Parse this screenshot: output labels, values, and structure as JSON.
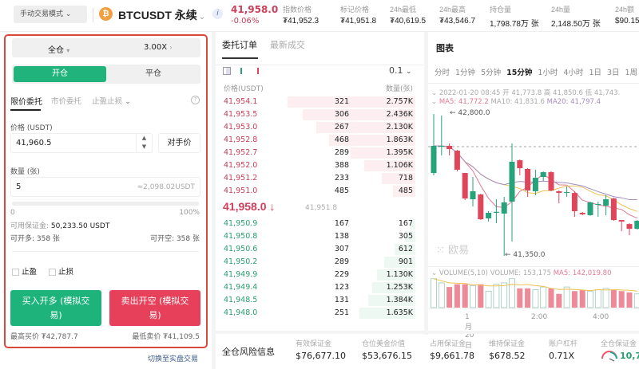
{
  "header": {
    "mode": "手动交易模式",
    "coin_letter": "₿",
    "symbol": "BTCUSDT 永续",
    "last_price": "41,958.0",
    "change": "-0.06%",
    "stats": [
      {
        "label": "指数价格",
        "value": "₮41,952.3"
      },
      {
        "label": "标记价格",
        "value": "₮41,951.8"
      },
      {
        "label": "24h最低",
        "value": "₮40,619.5"
      },
      {
        "label": "24h最高",
        "value": "₮43,546.7"
      },
      {
        "label": "持仓量",
        "value": "1,798.78万 张"
      },
      {
        "label": "24h量",
        "value": "2,148.50万 张"
      },
      {
        "label": "24h额",
        "value": "$90.15"
      }
    ]
  },
  "order_form": {
    "margin_mode": "全仓",
    "leverage": "3.00X",
    "open_tab": "开仓",
    "close_tab": "平仓",
    "tabs": [
      "限价委托",
      "市价委托",
      "止盈止损"
    ],
    "price_label": "价格 (USDT)",
    "price_value": "41,960.5",
    "counter_price": "对手价",
    "qty_label": "数量 (张)",
    "qty_value": "5",
    "qty_usdt": "≈2,098.02USDT",
    "slider_min": "0",
    "slider_max": "100%",
    "slider_value": 0,
    "avail_margin_label": "可用保证金:",
    "avail_margin": "50,233.50 USDT",
    "can_long": "可开多: 358 张",
    "can_short": "可开空: 358 张",
    "take_profit": "止盈",
    "stop_loss": "止损",
    "buy_button": "买入开多 (模拟交易)",
    "sell_button": "卖出开空 (模拟交易)",
    "max_buy": "最高买价 ₮42,787.7",
    "min_sell": "最低卖价 ₮41,109.5",
    "switch_live": "切换至实盘交易"
  },
  "orderbook": {
    "tabs": [
      "委托订单",
      "最新成交"
    ],
    "precision": "0.1",
    "col_price": "价格(USDT)",
    "col_qty": "数量(张)",
    "asks": [
      [
        "41,954.1",
        "321",
        "2.757K"
      ],
      [
        "41,953.5",
        "306",
        "2.436K"
      ],
      [
        "41,953.0",
        "267",
        "2.130K"
      ],
      [
        "41,952.8",
        "468",
        "1.863K"
      ],
      [
        "41,952.7",
        "289",
        "1.395K"
      ],
      [
        "41,952.0",
        "388",
        "1.106K"
      ],
      [
        "41,951.2",
        "233",
        "718"
      ],
      [
        "41,951.0",
        "485",
        "485"
      ]
    ],
    "mid_price": "41,958.0 ↓",
    "mark_price": "41,951.8",
    "bids": [
      [
        "41,950.9",
        "167",
        "167"
      ],
      [
        "41,950.8",
        "138",
        "305"
      ],
      [
        "41,950.6",
        "307",
        "612"
      ],
      [
        "41,950.2",
        "289",
        "901"
      ],
      [
        "41,949.9",
        "229",
        "1.130K"
      ],
      [
        "41,949.4",
        "123",
        "1.253K"
      ],
      [
        "41,948.5",
        "131",
        "1.384K"
      ],
      [
        "41,948.0",
        "251",
        "1.635K"
      ]
    ]
  },
  "chart": {
    "title": "图表",
    "timeframes": [
      "分时",
      "1分钟",
      "5分钟",
      "15分钟",
      "1小时",
      "4小时",
      "1日",
      "3日",
      "1周"
    ],
    "active_timeframe": "15分钟",
    "info_line": "2022-01-20 08:45  开 41,773.8  高 41,850.6  低 41,743.",
    "ma_line": {
      "ma5": "MA5: 41,772.2",
      "ma10": "MA10: 41,831.6",
      "ma20": "MA20: 41,797.4"
    },
    "high_label": "← 42,800.0",
    "low_label": "← 41,350.0",
    "watermark": "欧易",
    "volume_line": {
      "title": "VOLUME(5,10)",
      "volume": "VOLUME: 153,175",
      "ma5": "MA5: 142,019.80"
    },
    "time_labels": [
      "1月20日",
      "2:00",
      "4:00"
    ],
    "colors": {
      "up": "#26a37a",
      "down": "#e0465a",
      "ma5": "#e27891",
      "ma10": "#f0c050",
      "ma20": "#a58bbf"
    }
  },
  "risk": {
    "title": "全仓风险信息",
    "items": [
      {
        "label": "有效保证金",
        "value": "$76,677.10"
      },
      {
        "label": "仓位美金价值",
        "value": "$53,676.15"
      },
      {
        "label": "占用保证金",
        "value": "$9,661.78"
      },
      {
        "label": "维持保证金",
        "value": "$678.52"
      },
      {
        "label": "账户杠杆",
        "value": "0.71X"
      },
      {
        "label": "全仓保证金",
        "value": "10,7"
      }
    ]
  },
  "chart_data": {
    "type": "candlestick",
    "price_range": [
      41350,
      42800
    ],
    "dashed_line": 42466,
    "ohlc": [
      [
        42197,
        42800,
        42173,
        42474
      ],
      [
        42470,
        42784,
        42376,
        42474
      ],
      [
        42474,
        42498,
        42376,
        42441
      ],
      [
        42425,
        42433,
        42214,
        42230
      ],
      [
        42197,
        42197,
        41920,
        41936
      ],
      [
        41928,
        42156,
        41855,
        42010
      ],
      [
        41977,
        41985,
        41716,
        41724
      ],
      [
        41733,
        41806,
        41700,
        41790
      ],
      [
        41790,
        41928,
        41684,
        41800
      ],
      [
        41782,
        41953,
        41350,
        41896
      ],
      [
        41904,
        42500,
        41496,
        42311
      ],
      [
        42327,
        42335,
        42173,
        42246
      ],
      [
        42238,
        42246,
        41953,
        42018
      ],
      [
        42010,
        42230,
        41969,
        42148
      ],
      [
        42156,
        42214,
        42116,
        42205
      ],
      [
        42205,
        42214,
        42010,
        42018
      ],
      [
        42010,
        42018,
        41887,
        41993
      ],
      [
        41993,
        42059,
        41953,
        42002
      ],
      [
        41993,
        42010,
        41749,
        41806
      ],
      [
        41790,
        41798,
        41765,
        41774
      ],
      [
        41766,
        41904,
        41758,
        41896
      ],
      [
        41871,
        41904,
        41749,
        41880
      ],
      [
        41863,
        41969,
        41766,
        41928
      ],
      [
        41936,
        41944,
        41708,
        41716
      ],
      [
        41716,
        41716,
        41602,
        41700
      ],
      [
        41675,
        41683,
        41561,
        41626
      ],
      [
        41626,
        41716,
        41618,
        41708
      ]
    ],
    "volume": [
      210,
      180,
      150,
      170,
      170,
      160,
      170,
      120,
      170,
      180,
      210,
      140,
      140,
      130,
      150,
      140,
      100,
      150,
      120,
      130,
      120,
      130,
      140,
      130,
      120,
      110,
      100
    ]
  }
}
